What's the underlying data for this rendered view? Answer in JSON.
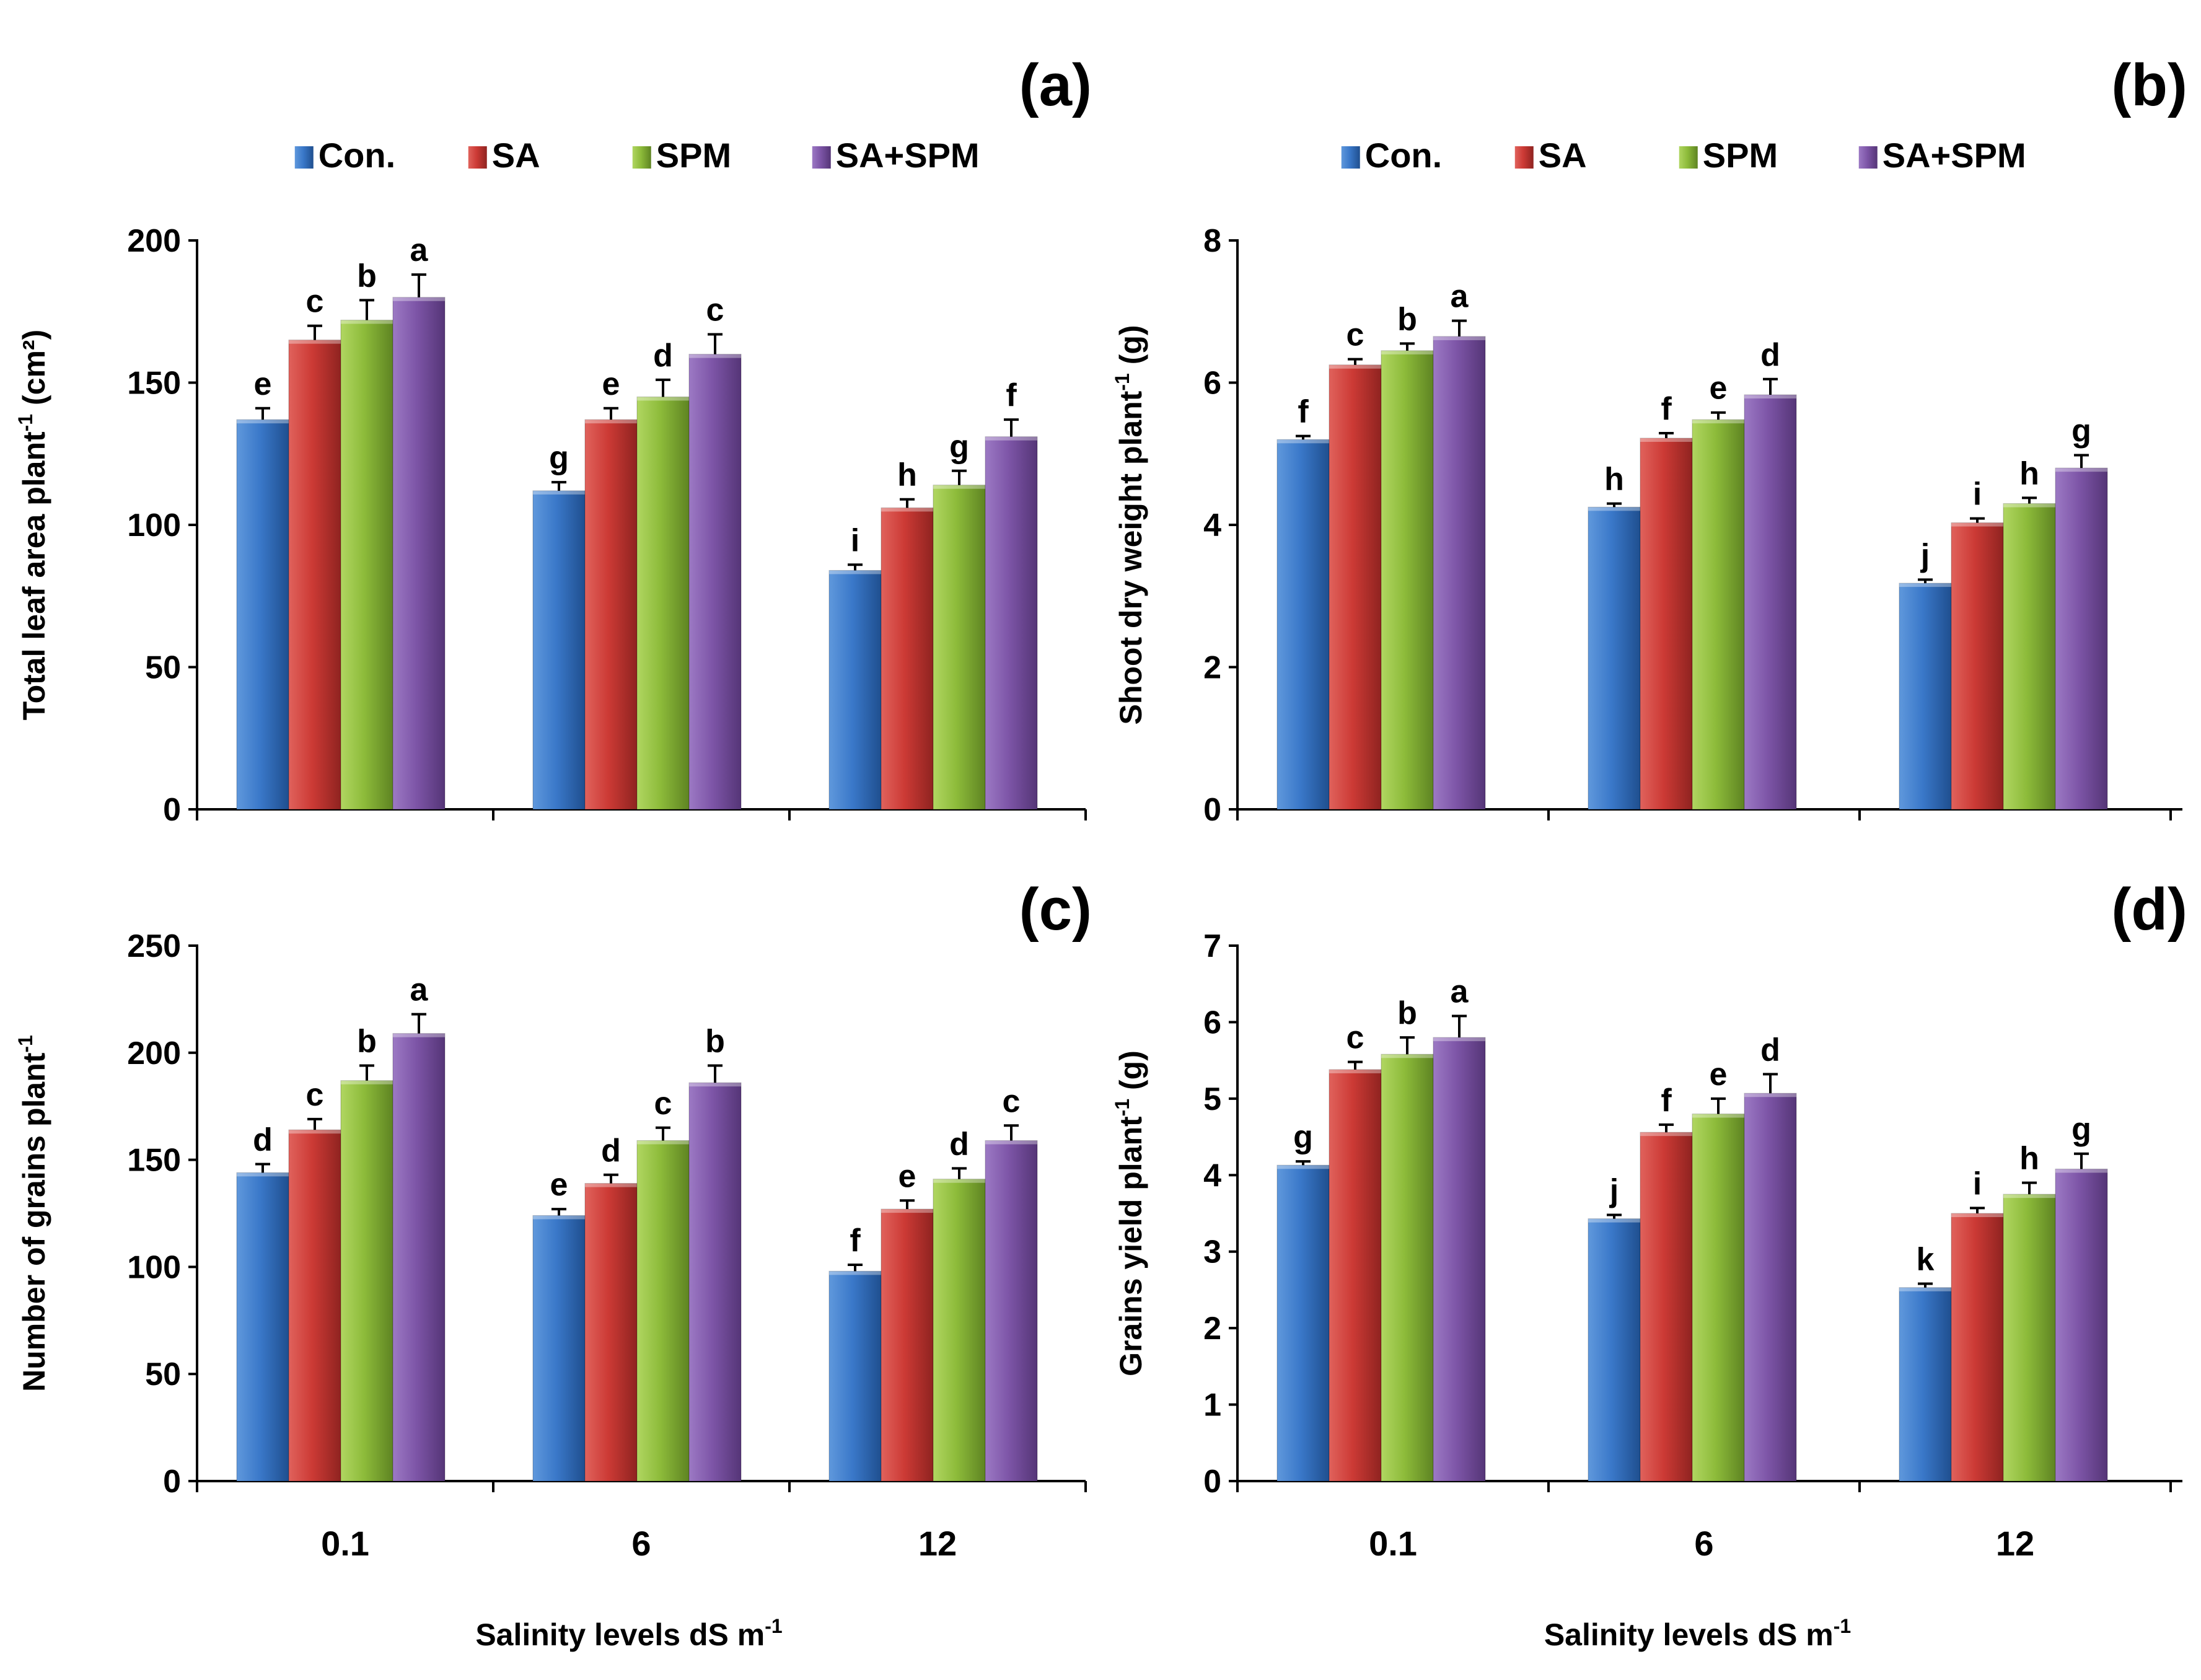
{
  "series_colors": {
    "Con.": "#3a78c9",
    "SA": "#cc3a35",
    "SPM": "#8dbb3a",
    "SA+SPM": "#7d55a7"
  },
  "chart_data": [
    {
      "panel": "(a)",
      "type": "bar",
      "ylabel_main": "Total leaf area plant",
      "ylabel_sup": "-1",
      "ylabel_tail": " (cm²)",
      "xlabel_main": "",
      "xlabel_sup": "",
      "ylim": [
        0,
        200
      ],
      "yticks": [
        "0",
        "50",
        "100",
        "150",
        "200"
      ],
      "legend": [
        "Con.",
        "SA",
        "SPM",
        "SA+SPM"
      ],
      "categories": [
        "",
        "",
        ""
      ],
      "series": [
        {
          "name": "Con.",
          "values": [
            137,
            112,
            84
          ],
          "errors": [
            4,
            3,
            2
          ],
          "letters": [
            "e",
            "g",
            "i"
          ]
        },
        {
          "name": "SA",
          "values": [
            165,
            137,
            106
          ],
          "errors": [
            5,
            4,
            3
          ],
          "letters": [
            "c",
            "e",
            "h"
          ]
        },
        {
          "name": "SPM",
          "values": [
            172,
            145,
            114
          ],
          "errors": [
            7,
            6,
            5
          ],
          "letters": [
            "b",
            "d",
            "g"
          ]
        },
        {
          "name": "SA+SPM",
          "values": [
            180,
            160,
            131
          ],
          "errors": [
            8,
            7,
            6
          ],
          "letters": [
            "a",
            "c",
            "f"
          ]
        }
      ]
    },
    {
      "panel": "(b)",
      "type": "bar",
      "ylabel_main": "Shoot dry weight plant",
      "ylabel_sup": "-1",
      "ylabel_tail": " (g)",
      "xlabel_main": "",
      "xlabel_sup": "",
      "ylim": [
        0,
        8
      ],
      "yticks": [
        "0",
        "2",
        "4",
        "6",
        "8"
      ],
      "legend": [
        "Con.",
        "SA",
        "SPM",
        "SA+SPM"
      ],
      "categories": [
        "",
        "",
        ""
      ],
      "series": [
        {
          "name": "Con.",
          "values": [
            5.2,
            4.25,
            3.18
          ],
          "errors": [
            0.05,
            0.05,
            0.05
          ],
          "letters": [
            "f",
            "h",
            "j"
          ]
        },
        {
          "name": "SA",
          "values": [
            6.25,
            5.22,
            4.03
          ],
          "errors": [
            0.08,
            0.07,
            0.06
          ],
          "letters": [
            "c",
            "f",
            "i"
          ]
        },
        {
          "name": "SPM",
          "values": [
            6.45,
            5.48,
            4.3
          ],
          "errors": [
            0.1,
            0.1,
            0.08
          ],
          "letters": [
            "b",
            "e",
            "h"
          ]
        },
        {
          "name": "SA+SPM",
          "values": [
            6.65,
            5.83,
            4.8
          ],
          "errors": [
            0.22,
            0.22,
            0.18
          ],
          "letters": [
            "a",
            "d",
            "g"
          ]
        }
      ]
    },
    {
      "panel": "(c)",
      "type": "bar",
      "ylabel_main": "Number of grains plant",
      "ylabel_sup": "-1",
      "ylabel_tail": "",
      "xlabel_main": "Salinity levels dS m",
      "xlabel_sup": "-1",
      "ylim": [
        0,
        250
      ],
      "yticks": [
        "0",
        "50",
        "100",
        "150",
        "200",
        "250"
      ],
      "legend": [],
      "categories": [
        "0.1",
        "6",
        "12"
      ],
      "series": [
        {
          "name": "Con.",
          "values": [
            144,
            124,
            98
          ],
          "errors": [
            4,
            3,
            3
          ],
          "letters": [
            "d",
            "e",
            "f"
          ]
        },
        {
          "name": "SA",
          "values": [
            164,
            139,
            127
          ],
          "errors": [
            5,
            4,
            4
          ],
          "letters": [
            "c",
            "d",
            "e"
          ]
        },
        {
          "name": "SPM",
          "values": [
            187,
            159,
            141
          ],
          "errors": [
            7,
            6,
            5
          ],
          "letters": [
            "b",
            "c",
            "d"
          ]
        },
        {
          "name": "SA+SPM",
          "values": [
            209,
            186,
            159
          ],
          "errors": [
            9,
            8,
            7
          ],
          "letters": [
            "a",
            "b",
            "c"
          ]
        }
      ]
    },
    {
      "panel": "(d)",
      "type": "bar",
      "ylabel_main": "Grains yield plant",
      "ylabel_sup": "-1",
      "ylabel_tail": " (g)",
      "xlabel_main": "Salinity levels dS m",
      "xlabel_sup": "-1",
      "ylim": [
        0,
        7
      ],
      "yticks": [
        "0",
        "1",
        "2",
        "3",
        "4",
        "5",
        "6",
        "7"
      ],
      "legend": [],
      "categories": [
        "0.1",
        "6",
        "12"
      ],
      "series": [
        {
          "name": "Con.",
          "values": [
            4.13,
            3.43,
            2.53
          ],
          "errors": [
            0.05,
            0.05,
            0.05
          ],
          "letters": [
            "g",
            "j",
            "k"
          ]
        },
        {
          "name": "SA",
          "values": [
            5.38,
            4.56,
            3.5
          ],
          "errors": [
            0.1,
            0.1,
            0.07
          ],
          "letters": [
            "c",
            "f",
            "i"
          ]
        },
        {
          "name": "SPM",
          "values": [
            5.58,
            4.8,
            3.75
          ],
          "errors": [
            0.22,
            0.2,
            0.15
          ],
          "letters": [
            "b",
            "e",
            "h"
          ]
        },
        {
          "name": "SA+SPM",
          "values": [
            5.8,
            5.07,
            4.08
          ],
          "errors": [
            0.28,
            0.25,
            0.2
          ],
          "letters": [
            "a",
            "d",
            "g"
          ]
        }
      ]
    }
  ]
}
